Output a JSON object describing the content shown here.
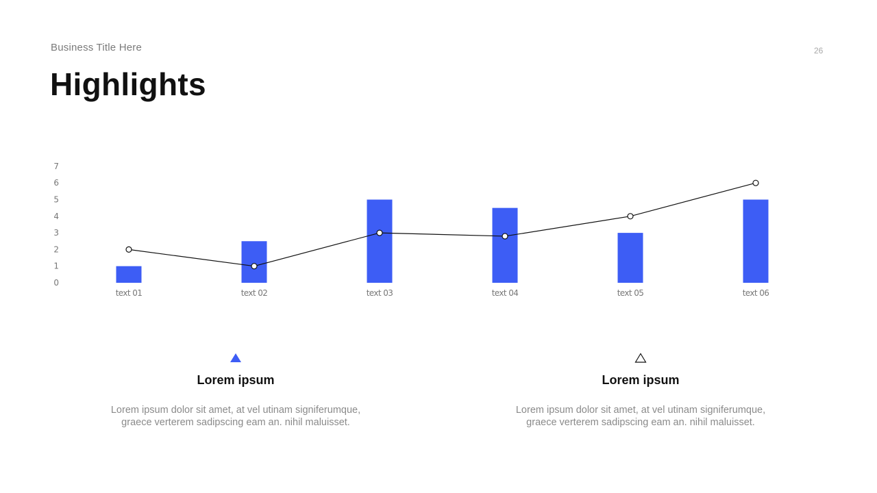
{
  "header": {
    "subtitle": "Business Title Here",
    "title": "Highlights",
    "page_number": "26"
  },
  "colors": {
    "accent": "#3d5df5",
    "line": "#111111",
    "axis_text": "#777777",
    "body_text": "#8a8a8a"
  },
  "chart_data": {
    "type": "bar",
    "title": "",
    "xlabel": "",
    "ylabel": "",
    "ylim": [
      0,
      7
    ],
    "yticks": [
      "0",
      "1",
      "2",
      "3",
      "4",
      "5",
      "6",
      "7"
    ],
    "grid": false,
    "legend": null,
    "categories": [
      "text 01",
      "text 02",
      "text 03",
      "text 04",
      "text 05",
      "text 06"
    ],
    "series": [
      {
        "name": "Bars",
        "type": "bar",
        "color": "#3d5df5",
        "values": [
          1,
          2.5,
          5,
          4.5,
          3,
          5
        ]
      },
      {
        "name": "Line",
        "type": "line",
        "color": "#111111",
        "marker": "hollow-circle",
        "values": [
          2,
          1,
          3,
          2.8,
          4,
          6
        ]
      }
    ]
  },
  "blocks": [
    {
      "icon": "filled-triangle-icon",
      "heading": "Lorem ipsum",
      "body_line1": "Lorem ipsum dolor sit amet, at vel utinam signiferumque,",
      "body_line2": "graece verterem sadipscing eam an. nihil maluisset."
    },
    {
      "icon": "outline-triangle-icon",
      "heading": "Lorem ipsum",
      "body_line1": "Lorem ipsum dolor sit amet, at vel utinam signiferumque,",
      "body_line2": "graece verterem sadipscing eam an. nihil maluisset."
    }
  ]
}
